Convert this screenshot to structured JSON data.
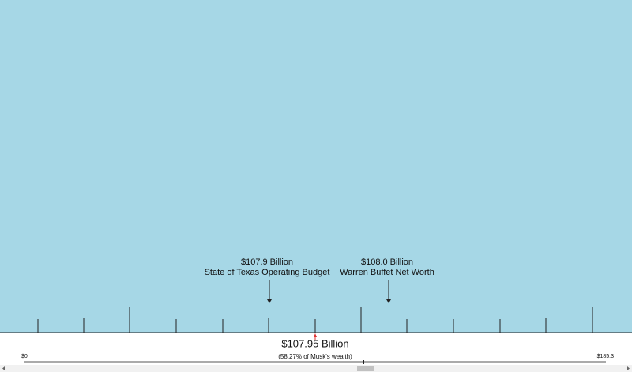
{
  "annotations": [
    {
      "amount": "$107.9 Billion",
      "label": "State of Texas Operating Budget"
    },
    {
      "amount": "$108.0 Billion",
      "label": "Warren Buffet Net Worth"
    }
  ],
  "readout": {
    "amount": "$107.95 Billion",
    "share": "(58.27% of Musk's wealth)"
  },
  "slider": {
    "min_label": "$0",
    "max_label": "$185.3"
  }
}
